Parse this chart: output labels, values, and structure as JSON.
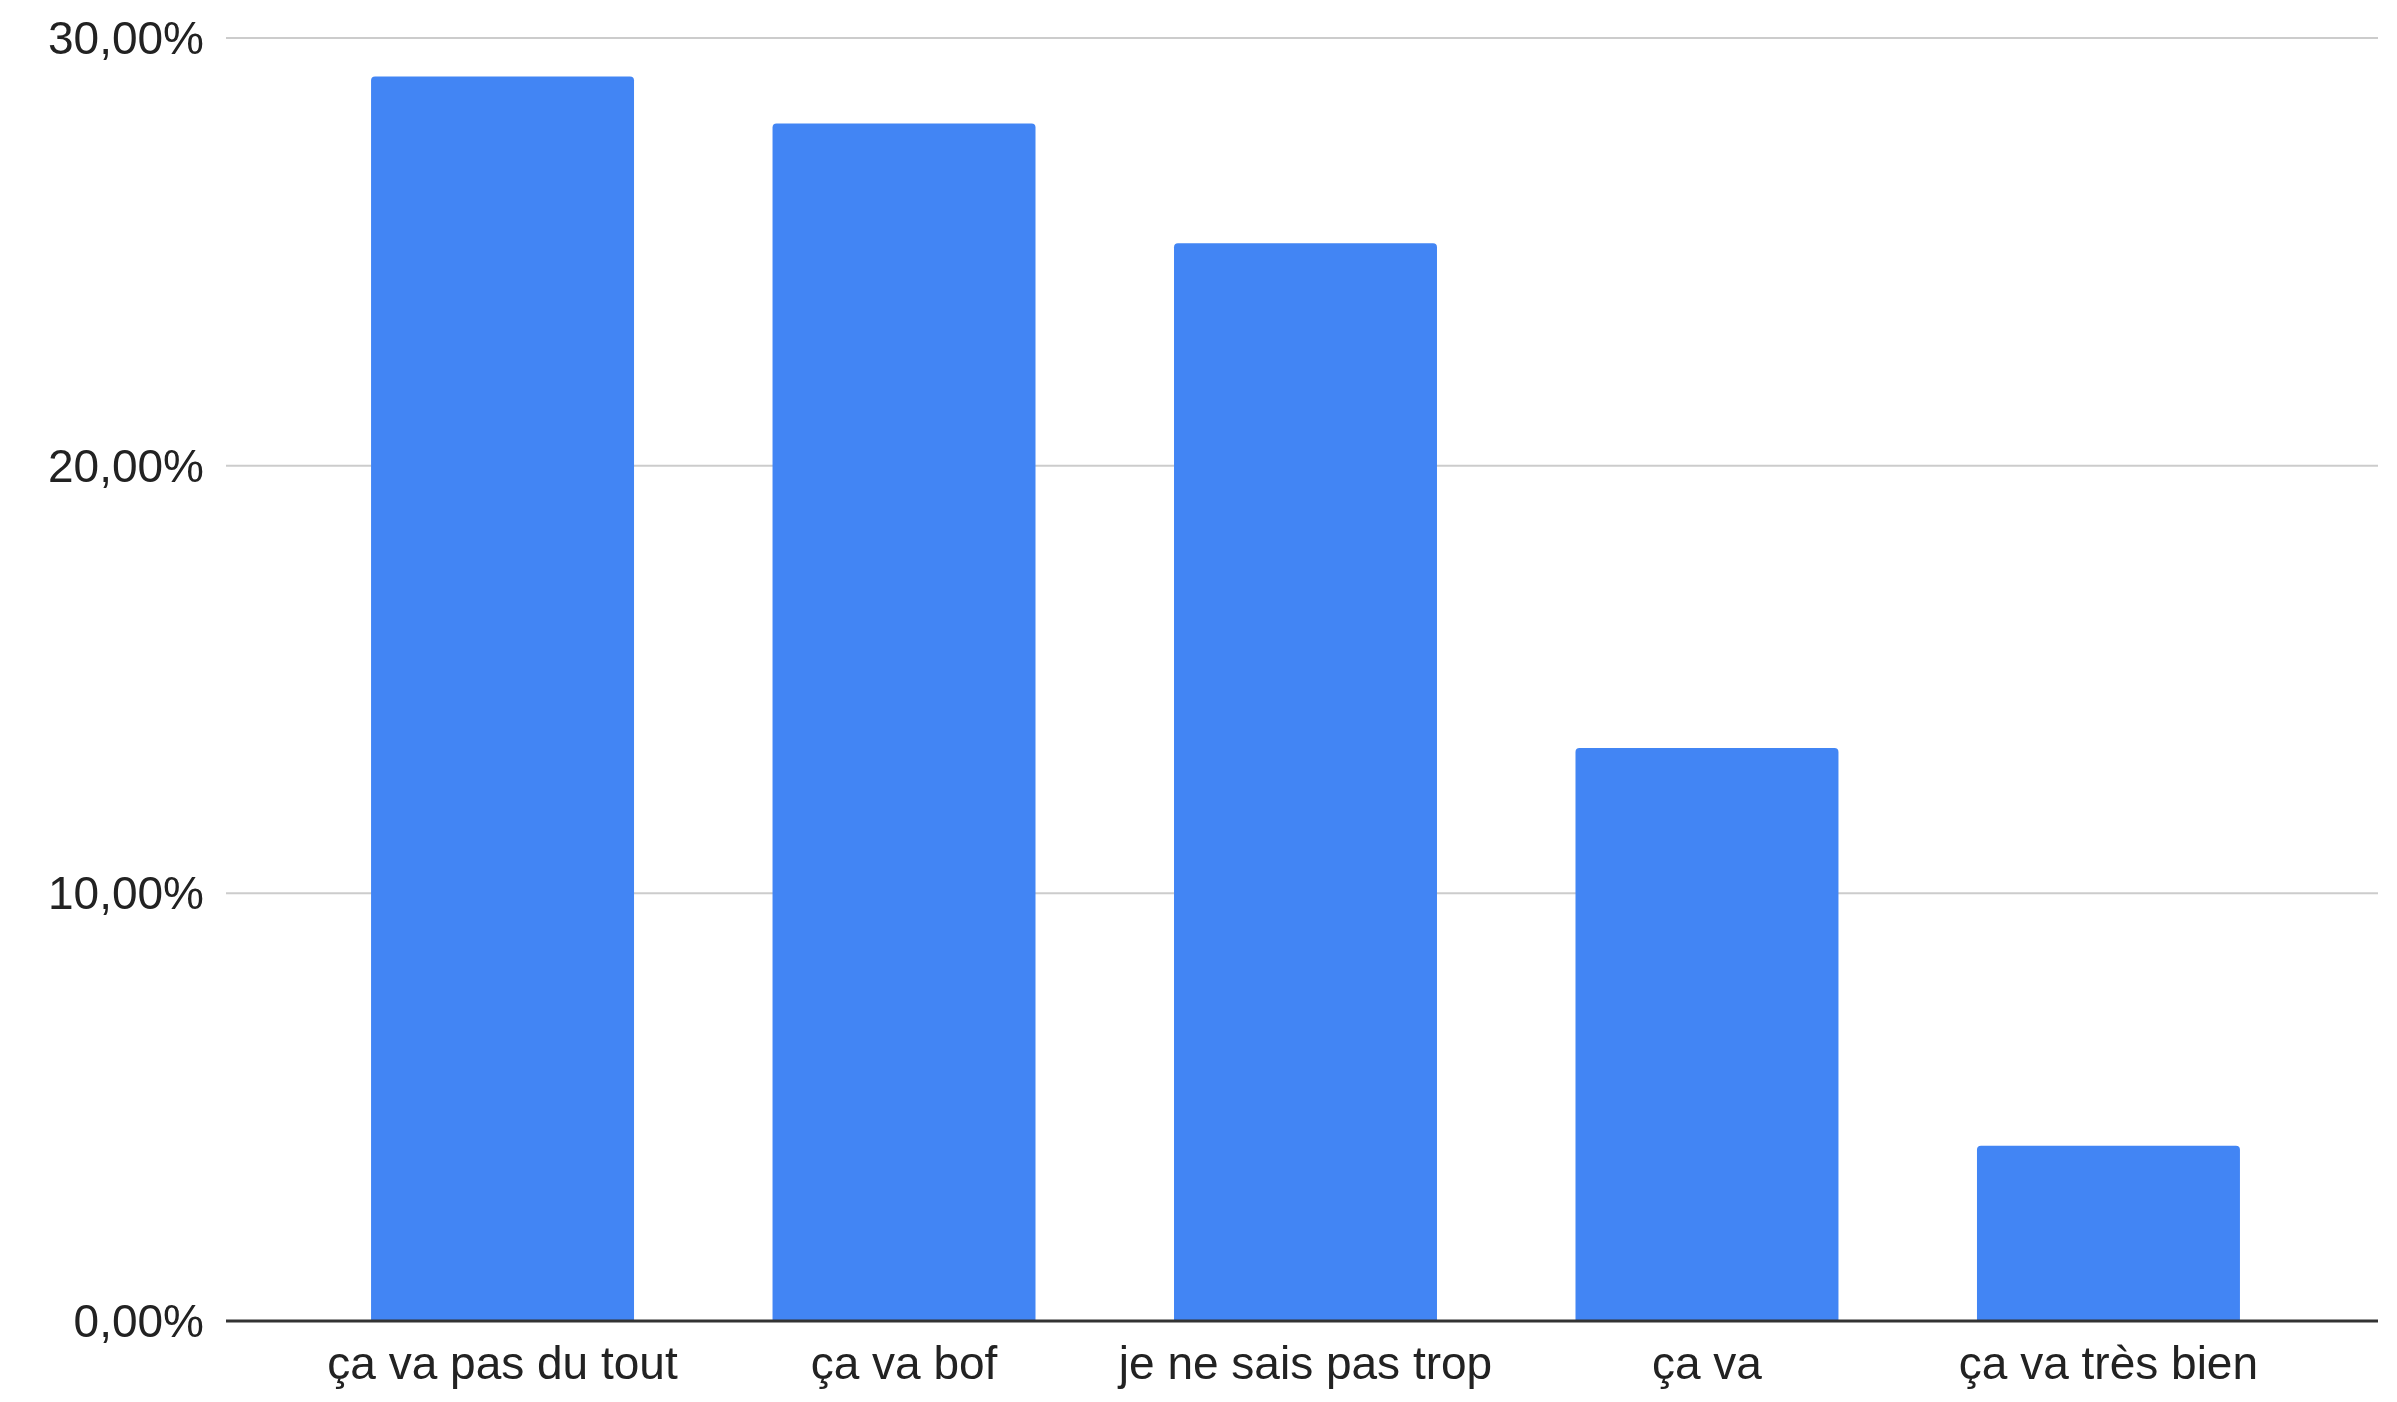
{
  "chart_data": {
    "type": "bar",
    "categories": [
      "ça va pas du tout",
      "ça va bof",
      "je ne sais pas trop",
      "ça va",
      "ça va très bien"
    ],
    "values": [
      29.1,
      28.0,
      25.2,
      13.4,
      4.1
    ],
    "color": "#4285f4",
    "ylim": [
      0,
      30
    ],
    "yticks": [
      {
        "value": 0,
        "label": "0,00%"
      },
      {
        "value": 10,
        "label": "10,00%"
      },
      {
        "value": 20,
        "label": "20,00%"
      },
      {
        "value": 30,
        "label": "30,00%"
      }
    ],
    "grid": "y"
  }
}
